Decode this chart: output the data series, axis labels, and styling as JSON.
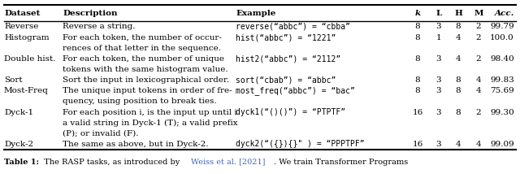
{
  "headers": [
    "Dataset",
    "Description",
    "Example",
    "k",
    "L",
    "H",
    "M",
    "Acc."
  ],
  "header_styles": [
    "bold",
    "bold",
    "bold",
    "bold_italic",
    "bold",
    "bold",
    "bold",
    "bold_italic"
  ],
  "rows": [
    {
      "dataset": "Reverse",
      "description": [
        "Reverse a string."
      ],
      "example": "reverse(“abbc”) = “cbba”",
      "k": "8",
      "L": "3",
      "H": "8",
      "M": "2",
      "acc": "99.79"
    },
    {
      "dataset": "Histogram",
      "description": [
        "For each token, the number of occur-",
        "rences of that letter in the sequence."
      ],
      "example": "hist(“abbc”) = “1221”",
      "k": "8",
      "L": "1",
      "H": "4",
      "M": "2",
      "acc": "100.0"
    },
    {
      "dataset": "Double hist.",
      "description": [
        "For each token, the number of unique",
        "tokens with the same histogram value."
      ],
      "example": "hist2(“abbc”) = “2112”",
      "k": "8",
      "L": "3",
      "H": "4",
      "M": "2",
      "acc": "98.40"
    },
    {
      "dataset": "Sort",
      "description": [
        "Sort the input in lexicographical order."
      ],
      "example": "sort(“cbab”) = “abbc”",
      "k": "8",
      "L": "3",
      "H": "8",
      "M": "4",
      "acc": "99.83"
    },
    {
      "dataset": "Most-Freq",
      "description": [
        "The unique input tokens in order of fre-",
        "quency, using position to break ties."
      ],
      "example": "most_freq(“abbc”) = “bac”",
      "k": "8",
      "L": "3",
      "H": "8",
      "M": "4",
      "acc": "75.69"
    },
    {
      "dataset": "Dyck-1",
      "description": [
        "For each position i, is the input up until i",
        "a valid string in Dyck-1 (T); a valid prefix",
        "(P); or invalid (F)."
      ],
      "example": "dyck1(“()()”) = “PTPTF”",
      "k": "16",
      "L": "3",
      "H": "8",
      "M": "2",
      "acc": "99.30"
    },
    {
      "dataset": "Dyck-2",
      "description": [
        "The same as above, but in Dyck-2."
      ],
      "example": "dyck2(“({}){}\" ) = “PPPTPF”",
      "k": "16",
      "L": "3",
      "H": "4",
      "M": "4",
      "acc": "99.09"
    }
  ],
  "caption_parts": [
    {
      "text": "Table 1: ",
      "style": "bold",
      "color": "#000000"
    },
    {
      "text": " The RASP tasks, as introduced by ",
      "style": "normal",
      "color": "#000000"
    },
    {
      "text": "Weiss et al. [2021]",
      "style": "normal",
      "color": "#4466bb"
    },
    {
      "text": ". We train Transformer Programs",
      "style": "normal",
      "color": "#000000"
    }
  ],
  "bg_color": "#ffffff",
  "line_color": "#000000",
  "text_color": "#000000",
  "fontsize": 7.5,
  "code_fontsize": 7.0,
  "caption_fontsize": 7.0
}
